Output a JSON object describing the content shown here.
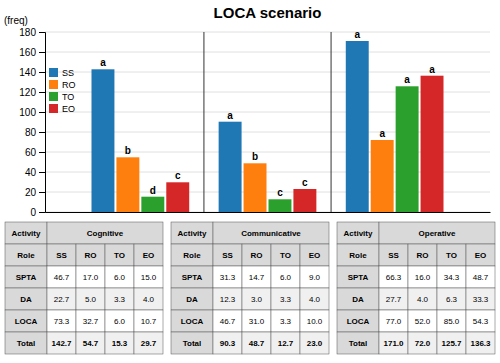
{
  "chart_data": {
    "type": "bar",
    "title": "LOCA scenario",
    "ylabel": "(freq)",
    "categories": [
      "Cognitive",
      "Communicative",
      "Operative"
    ],
    "series": [
      {
        "name": "SS",
        "values": [
          142.7,
          90.3,
          171.0
        ],
        "letters": [
          "a",
          "a",
          "a"
        ]
      },
      {
        "name": "RO",
        "values": [
          54.7,
          48.7,
          72.0
        ],
        "letters": [
          "b",
          "b",
          "a"
        ]
      },
      {
        "name": "TO",
        "values": [
          15.3,
          12.7,
          125.7
        ],
        "letters": [
          "d",
          "c",
          "a"
        ]
      },
      {
        "name": "EO",
        "values": [
          29.7,
          23.0,
          136.3
        ],
        "letters": [
          "c",
          "c",
          "a"
        ]
      }
    ],
    "ylim": [
      0,
      180
    ],
    "yticks": [
      0,
      20,
      40,
      60,
      80,
      100,
      120,
      140,
      160,
      180
    ],
    "grid": true,
    "legend": "upper left",
    "table": {
      "activity_label": "Activity",
      "role_label": "Role",
      "rows": [
        "SPTA",
        "DA",
        "LOCA",
        "Total"
      ],
      "cells": [
        [
          [
            46.7,
            17.0,
            6.0,
            15.0
          ],
          [
            22.7,
            5.0,
            3.3,
            4.0
          ],
          [
            73.3,
            32.7,
            6.0,
            10.7
          ],
          [
            142.7,
            54.7,
            15.3,
            29.7
          ]
        ],
        [
          [
            31.3,
            14.7,
            6.0,
            9.0
          ],
          [
            12.3,
            3.0,
            3.3,
            4.0
          ],
          [
            46.7,
            31.0,
            3.3,
            10.0
          ],
          [
            90.3,
            48.7,
            12.7,
            23.0
          ]
        ],
        [
          [
            66.3,
            16.0,
            34.3,
            48.7
          ],
          [
            27.7,
            4.0,
            6.3,
            33.3
          ],
          [
            77.0,
            52.0,
            85.0,
            54.3
          ],
          [
            171.0,
            72.0,
            125.7,
            136.3
          ]
        ]
      ]
    }
  }
}
